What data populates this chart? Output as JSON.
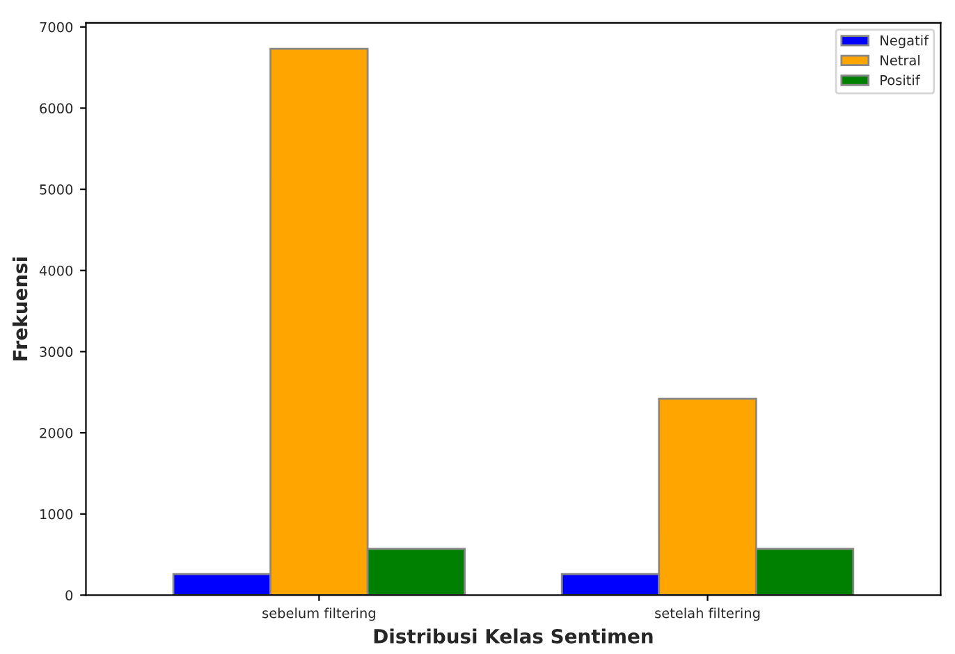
{
  "chart_data": {
    "type": "bar",
    "xlabel": "Distribusi Kelas Sentimen",
    "ylabel": "Frekuensi",
    "categories": [
      "sebelum filtering",
      "setelah filtering"
    ],
    "series": [
      {
        "name": "Negatif",
        "color": "#0000ff",
        "values": [
          260,
          260
        ]
      },
      {
        "name": "Netral",
        "color": "#ffa500",
        "values": [
          6730,
          2420
        ]
      },
      {
        "name": "Positif",
        "color": "#008000",
        "values": [
          570,
          570
        ]
      }
    ],
    "ylim": [
      0,
      7050
    ],
    "yticks": [
      0,
      1000,
      2000,
      3000,
      4000,
      5000,
      6000,
      7000
    ],
    "grid": false,
    "legend": "top right"
  }
}
